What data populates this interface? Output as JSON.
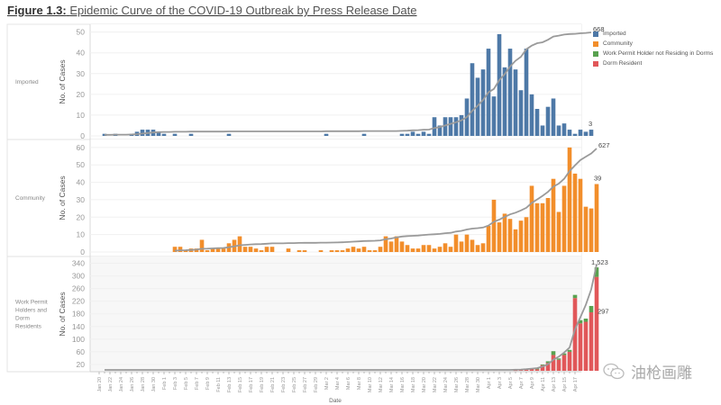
{
  "figure": {
    "label": "Figure 1.3:",
    "title": "Epidemic Curve of the COVID-19 Outbreak by Press Release Date"
  },
  "legend": [
    {
      "label": "Imported",
      "color": "#4e79a7"
    },
    {
      "label": "Community",
      "color": "#f28e2b"
    },
    {
      "label": "Work Permit Holder not Residing in Dorms",
      "color": "#59a14f"
    },
    {
      "label": "Dorm Resident",
      "color": "#e15759"
    }
  ],
  "watermark": "油枪画雕",
  "chart_data": {
    "type": "bar",
    "title": "Epidemic Curve of the COVID-19 Outbreak by Press Release Date",
    "xlabel": "Date",
    "start_date": "Jan 20",
    "x_tick_labels": [
      "Jan 20",
      "Jan 22",
      "Jan 24",
      "Jan 26",
      "Jan 28",
      "Jan 30",
      "Feb 1",
      "Feb 3",
      "Feb 5",
      "Feb 7",
      "Feb 9",
      "Feb 11",
      "Feb 13",
      "Feb 15",
      "Feb 17",
      "Feb 19",
      "Feb 21",
      "Feb 23",
      "Feb 25",
      "Feb 27",
      "Feb 29",
      "Mar 2",
      "Mar 4",
      "Mar 6",
      "Mar 8",
      "Mar 10",
      "Mar 12",
      "Mar 14",
      "Mar 16",
      "Mar 18",
      "Mar 20",
      "Mar 22",
      "Mar 24",
      "Mar 26",
      "Mar 28",
      "Mar 30",
      "Apr 1",
      "Apr 3",
      "Apr 5",
      "Apr 7",
      "Apr 9",
      "Apr 11",
      "Apr 13",
      "Apr 15",
      "Apr 17"
    ],
    "panels": [
      {
        "name": "Imported",
        "ylabel": "No. of Cases",
        "ylim": [
          0,
          52
        ],
        "yticks": [
          0,
          10,
          20,
          30,
          40,
          50
        ],
        "cumulative_label": "668",
        "last_label": "3",
        "series": [
          {
            "name": "Imported",
            "color": "#4e79a7",
            "values": [
              0,
              1,
              0,
              1,
              0,
              0,
              1,
              2,
              3,
              3,
              3,
              2,
              1,
              0,
              1,
              0,
              0,
              1,
              0,
              0,
              0,
              0,
              0,
              0,
              1,
              0,
              0,
              0,
              0,
              0,
              0,
              0,
              0,
              0,
              0,
              0,
              0,
              0,
              0,
              0,
              0,
              0,
              1,
              0,
              0,
              0,
              0,
              0,
              0,
              1,
              0,
              0,
              0,
              0,
              0,
              0,
              1,
              1,
              2,
              1,
              2,
              1,
              9,
              5,
              9,
              9,
              9,
              10,
              18,
              35,
              28,
              32,
              42,
              19,
              49,
              33,
              42,
              32,
              22,
              42,
              20,
              13,
              5,
              14,
              18,
              5,
              6,
              3,
              1,
              3,
              2,
              3,
              0,
              0,
              0,
              0,
              0,
              0
            ]
          }
        ]
      },
      {
        "name": "Community",
        "ylabel": "No. of Cases",
        "ylim": [
          0,
          62
        ],
        "yticks": [
          0,
          10,
          20,
          30,
          40,
          50,
          60
        ],
        "cumulative_label": "627",
        "last_label": "39",
        "series": [
          {
            "name": "Community",
            "color": "#f28e2b",
            "values": [
              0,
              0,
              0,
              0,
              0,
              0,
              0,
              0,
              0,
              0,
              0,
              0,
              0,
              0,
              3,
              3,
              1,
              2,
              2,
              7,
              1,
              2,
              2,
              2,
              5,
              7,
              9,
              3,
              3,
              2,
              1,
              3,
              3,
              0,
              0,
              2,
              0,
              1,
              1,
              0,
              0,
              1,
              0,
              1,
              1,
              1,
              2,
              3,
              2,
              3,
              1,
              1,
              3,
              9,
              6,
              9,
              6,
              4,
              2,
              2,
              4,
              4,
              2,
              3,
              5,
              3,
              10,
              6,
              10,
              7,
              4,
              5,
              15,
              30,
              17,
              22,
              19,
              13,
              18,
              20,
              38,
              28,
              28,
              31,
              42,
              23,
              38,
              60,
              45,
              42,
              26,
              25,
              39,
              0,
              0,
              0,
              0,
              0
            ]
          }
        ]
      },
      {
        "name": "Work Permit Holders and Dorm Residents",
        "ylabel": "No. of Cases",
        "ylim": [
          0,
          350
        ],
        "yticks": [
          20,
          60,
          100,
          140,
          180,
          220,
          260,
          300,
          340
        ],
        "cumulative_label": "1,523",
        "last_label": "297",
        "series": [
          {
            "name": "Dorm Resident",
            "color": "#e15759",
            "values": [
              0,
              0,
              0,
              0,
              0,
              0,
              0,
              0,
              0,
              0,
              0,
              0,
              0,
              0,
              0,
              0,
              0,
              0,
              0,
              0,
              0,
              0,
              0,
              0,
              0,
              0,
              0,
              0,
              0,
              0,
              0,
              0,
              0,
              0,
              0,
              0,
              0,
              0,
              0,
              0,
              0,
              0,
              0,
              0,
              0,
              0,
              0,
              0,
              0,
              0,
              0,
              0,
              0,
              0,
              0,
              0,
              0,
              0,
              0,
              0,
              0,
              0,
              0,
              0,
              0,
              0,
              0,
              0,
              0,
              0,
              0,
              0,
              0,
              0,
              0,
              0,
              0,
              2,
              3,
              4,
              8,
              5,
              18,
              25,
              50,
              35,
              50,
              60,
              230,
              150,
              155,
              185,
              297,
              0,
              0,
              0,
              0,
              0
            ]
          },
          {
            "name": "Work Permit Holder not Residing in Dorms",
            "color": "#59a14f",
            "values": [
              0,
              0,
              0,
              0,
              0,
              0,
              0,
              0,
              0,
              0,
              0,
              0,
              0,
              0,
              0,
              0,
              0,
              0,
              0,
              0,
              0,
              0,
              0,
              0,
              0,
              0,
              0,
              0,
              0,
              0,
              0,
              0,
              0,
              0,
              0,
              0,
              0,
              0,
              0,
              0,
              0,
              0,
              0,
              0,
              0,
              0,
              0,
              0,
              0,
              0,
              0,
              0,
              0,
              0,
              0,
              0,
              0,
              0,
              0,
              0,
              0,
              0,
              0,
              0,
              0,
              0,
              0,
              0,
              0,
              0,
              0,
              0,
              0,
              0,
              0,
              0,
              0,
              0,
              0,
              0,
              0,
              2,
              2,
              5,
              12,
              4,
              5,
              6,
              10,
              10,
              10,
              20,
              30,
              0,
              0,
              0,
              0,
              0
            ]
          }
        ]
      }
    ]
  }
}
